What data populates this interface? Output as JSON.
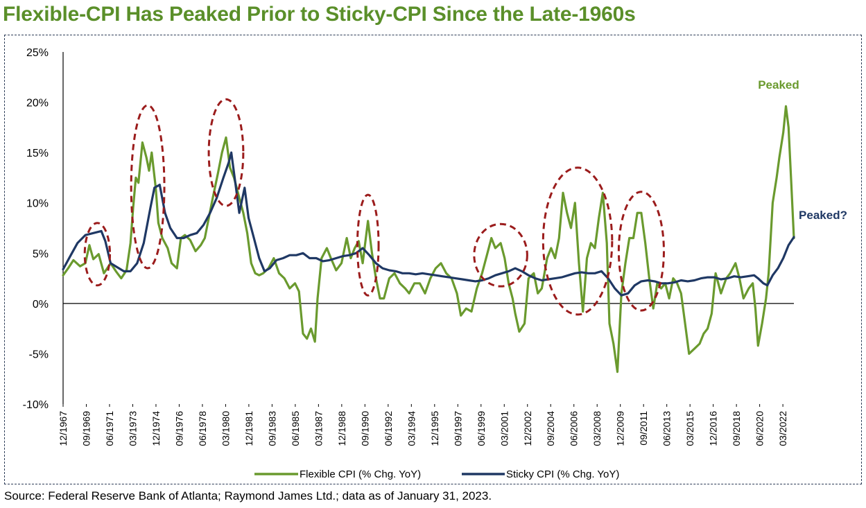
{
  "title": "Flexible-CPI Has Peaked Prior to Sticky-CPI Since the Late-1960s",
  "source": "Source: Federal Reserve Bank of Atlanta; Raymond James Ltd.; data as of January 31, 2023.",
  "colors": {
    "title": "#5a8f29",
    "flexible": "#6a9a2e",
    "sticky": "#1f3864",
    "circles": "#9b1c1c",
    "frame": "#2a3a55"
  },
  "chart_data": {
    "type": "line",
    "title": "Flexible-CPI Has Peaked Prior to Sticky-CPI Since the Late-1960s",
    "xlabel": "",
    "ylabel": "",
    "ylim": [
      -10,
      25
    ],
    "xlim": [
      1967.92,
      2023.0
    ],
    "grid": false,
    "legend_position": "bottom",
    "y_ticks": [
      "25%",
      "20%",
      "15%",
      "10%",
      "5%",
      "0%",
      "-5%",
      "-10%"
    ],
    "y_tick_values": [
      25,
      20,
      15,
      10,
      5,
      0,
      -5,
      -10
    ],
    "x_ticks": [
      "12/1967",
      "09/1969",
      "06/1971",
      "03/1973",
      "12/1974",
      "09/1976",
      "06/1978",
      "03/1980",
      "12/1981",
      "09/1983",
      "06/1985",
      "03/1987",
      "12/1988",
      "09/1990",
      "06/1992",
      "03/1994",
      "12/1995",
      "09/1997",
      "06/1999",
      "03/2001",
      "12/2002",
      "09/2004",
      "06/2006",
      "03/2008",
      "12/2009",
      "09/2011",
      "06/2013",
      "03/2015",
      "12/2016",
      "09/2018",
      "06/2020",
      "03/2022"
    ],
    "x_tick_values": [
      1967.92,
      1969.67,
      1971.42,
      1973.17,
      1974.92,
      1976.67,
      1978.42,
      1980.17,
      1981.92,
      1983.67,
      1985.42,
      1987.17,
      1988.92,
      1990.67,
      1992.42,
      1994.17,
      1995.92,
      1997.67,
      1999.42,
      2001.17,
      2002.92,
      2004.67,
      2006.42,
      2008.17,
      2009.92,
      2011.67,
      2013.42,
      2015.17,
      2016.92,
      2018.67,
      2020.42,
      2022.17
    ],
    "series": [
      {
        "name": "Flexible CPI (% Chg. YoY)",
        "points": [
          [
            1967.92,
            2.8
          ],
          [
            1968.3,
            3.5
          ],
          [
            1968.7,
            4.3
          ],
          [
            1969.2,
            3.7
          ],
          [
            1969.6,
            4.0
          ],
          [
            1969.9,
            5.8
          ],
          [
            1970.2,
            4.4
          ],
          [
            1970.6,
            4.9
          ],
          [
            1971.0,
            3.0
          ],
          [
            1971.5,
            4.0
          ],
          [
            1971.9,
            3.2
          ],
          [
            1972.3,
            2.5
          ],
          [
            1972.7,
            3.3
          ],
          [
            1973.0,
            6.0
          ],
          [
            1973.2,
            9.5
          ],
          [
            1973.4,
            12.5
          ],
          [
            1973.6,
            12.0
          ],
          [
            1973.9,
            16.0
          ],
          [
            1974.2,
            14.5
          ],
          [
            1974.4,
            13.2
          ],
          [
            1974.6,
            15.0
          ],
          [
            1974.9,
            11.5
          ],
          [
            1975.1,
            8.0
          ],
          [
            1975.4,
            6.5
          ],
          [
            1975.8,
            5.5
          ],
          [
            1976.1,
            4.0
          ],
          [
            1976.5,
            3.5
          ],
          [
            1976.8,
            6.5
          ],
          [
            1977.1,
            6.8
          ],
          [
            1977.5,
            6.3
          ],
          [
            1977.9,
            5.2
          ],
          [
            1978.3,
            5.8
          ],
          [
            1978.6,
            6.5
          ],
          [
            1978.9,
            8.5
          ],
          [
            1979.2,
            10.5
          ],
          [
            1979.6,
            13.0
          ],
          [
            1979.9,
            15.0
          ],
          [
            1980.2,
            16.5
          ],
          [
            1980.5,
            13.5
          ],
          [
            1980.8,
            12.5
          ],
          [
            1981.1,
            11.0
          ],
          [
            1981.5,
            9.0
          ],
          [
            1981.8,
            7.0
          ],
          [
            1982.1,
            4.0
          ],
          [
            1982.4,
            3.0
          ],
          [
            1982.7,
            2.8
          ],
          [
            1983.0,
            3.0
          ],
          [
            1983.4,
            3.5
          ],
          [
            1983.8,
            4.5
          ],
          [
            1984.2,
            3.0
          ],
          [
            1984.6,
            2.5
          ],
          [
            1985.0,
            1.5
          ],
          [
            1985.4,
            2.0
          ],
          [
            1985.7,
            1.2
          ],
          [
            1986.0,
            -3.0
          ],
          [
            1986.3,
            -3.5
          ],
          [
            1986.6,
            -2.5
          ],
          [
            1986.9,
            -3.8
          ],
          [
            1987.1,
            0.5
          ],
          [
            1987.4,
            4.5
          ],
          [
            1987.8,
            5.5
          ],
          [
            1988.1,
            4.5
          ],
          [
            1988.5,
            3.3
          ],
          [
            1988.9,
            4.0
          ],
          [
            1989.3,
            6.5
          ],
          [
            1989.6,
            4.5
          ],
          [
            1989.9,
            5.5
          ],
          [
            1990.2,
            6.2
          ],
          [
            1990.5,
            4.0
          ],
          [
            1990.9,
            8.2
          ],
          [
            1991.2,
            5.0
          ],
          [
            1991.5,
            2.5
          ],
          [
            1991.8,
            0.5
          ],
          [
            1992.1,
            0.5
          ],
          [
            1992.5,
            2.5
          ],
          [
            1992.9,
            3.0
          ],
          [
            1993.3,
            2.0
          ],
          [
            1993.7,
            1.5
          ],
          [
            1994.0,
            1.0
          ],
          [
            1994.4,
            2.0
          ],
          [
            1994.8,
            2.0
          ],
          [
            1995.2,
            1.0
          ],
          [
            1995.6,
            2.5
          ],
          [
            1996.0,
            3.5
          ],
          [
            1996.4,
            4.0
          ],
          [
            1996.8,
            3.0
          ],
          [
            1997.2,
            2.5
          ],
          [
            1997.6,
            1.0
          ],
          [
            1997.9,
            -1.2
          ],
          [
            1998.3,
            -0.5
          ],
          [
            1998.7,
            -0.8
          ],
          [
            1999.1,
            1.5
          ],
          [
            1999.5,
            3.0
          ],
          [
            1999.9,
            5.0
          ],
          [
            2000.2,
            6.5
          ],
          [
            2000.5,
            5.5
          ],
          [
            2000.9,
            6.0
          ],
          [
            2001.2,
            4.5
          ],
          [
            2001.5,
            2.0
          ],
          [
            2001.8,
            0.5
          ],
          [
            2002.0,
            -1.0
          ],
          [
            2002.3,
            -2.8
          ],
          [
            2002.7,
            -2.0
          ],
          [
            2003.0,
            2.5
          ],
          [
            2003.4,
            3.0
          ],
          [
            2003.7,
            1.0
          ],
          [
            2004.0,
            1.5
          ],
          [
            2004.4,
            4.5
          ],
          [
            2004.7,
            5.5
          ],
          [
            2005.0,
            4.5
          ],
          [
            2005.3,
            6.5
          ],
          [
            2005.6,
            11.0
          ],
          [
            2005.9,
            9.0
          ],
          [
            2006.2,
            7.5
          ],
          [
            2006.5,
            10.0
          ],
          [
            2006.8,
            4.0
          ],
          [
            2007.1,
            -0.8
          ],
          [
            2007.4,
            4.5
          ],
          [
            2007.7,
            6.0
          ],
          [
            2008.0,
            5.5
          ],
          [
            2008.3,
            8.5
          ],
          [
            2008.6,
            11.0
          ],
          [
            2008.9,
            6.0
          ],
          [
            2009.1,
            -2.0
          ],
          [
            2009.4,
            -4.0
          ],
          [
            2009.7,
            -6.8
          ],
          [
            2010.0,
            1.0
          ],
          [
            2010.3,
            4.0
          ],
          [
            2010.6,
            6.5
          ],
          [
            2010.9,
            6.5
          ],
          [
            2011.2,
            9.0
          ],
          [
            2011.5,
            9.0
          ],
          [
            2011.8,
            6.0
          ],
          [
            2012.1,
            2.5
          ],
          [
            2012.4,
            -0.5
          ],
          [
            2012.7,
            2.0
          ],
          [
            2013.0,
            1.5
          ],
          [
            2013.3,
            2.0
          ],
          [
            2013.6,
            0.5
          ],
          [
            2013.9,
            2.5
          ],
          [
            2014.2,
            2.0
          ],
          [
            2014.5,
            1.0
          ],
          [
            2014.8,
            -2.0
          ],
          [
            2015.1,
            -5.0
          ],
          [
            2015.5,
            -4.5
          ],
          [
            2015.9,
            -4.0
          ],
          [
            2016.2,
            -3.0
          ],
          [
            2016.5,
            -2.5
          ],
          [
            2016.8,
            -1.0
          ],
          [
            2017.1,
            3.0
          ],
          [
            2017.5,
            1.0
          ],
          [
            2017.9,
            2.5
          ],
          [
            2018.2,
            3.0
          ],
          [
            2018.6,
            4.0
          ],
          [
            2018.9,
            2.5
          ],
          [
            2019.2,
            0.5
          ],
          [
            2019.6,
            1.5
          ],
          [
            2019.9,
            2.0
          ],
          [
            2020.1,
            -0.5
          ],
          [
            2020.3,
            -4.2
          ],
          [
            2020.6,
            -2.0
          ],
          [
            2020.9,
            0.5
          ],
          [
            2021.1,
            3.0
          ],
          [
            2021.4,
            10.0
          ],
          [
            2021.7,
            12.5
          ],
          [
            2021.9,
            14.5
          ],
          [
            2022.2,
            17.0
          ],
          [
            2022.4,
            19.6
          ],
          [
            2022.6,
            17.5
          ],
          [
            2022.8,
            12.0
          ],
          [
            2023.0,
            6.5
          ]
        ]
      },
      {
        "name": "Sticky CPI (% Chg. YoY)",
        "points": [
          [
            1967.92,
            3.4
          ],
          [
            1968.5,
            4.8
          ],
          [
            1969.0,
            6.0
          ],
          [
            1969.6,
            6.8
          ],
          [
            1970.2,
            7.0
          ],
          [
            1970.8,
            7.2
          ],
          [
            1971.1,
            6.2
          ],
          [
            1971.5,
            4.0
          ],
          [
            1972.0,
            3.6
          ],
          [
            1972.5,
            3.2
          ],
          [
            1973.0,
            3.2
          ],
          [
            1973.5,
            4.0
          ],
          [
            1974.0,
            6.0
          ],
          [
            1974.5,
            9.5
          ],
          [
            1974.8,
            11.5
          ],
          [
            1975.2,
            11.8
          ],
          [
            1975.6,
            9.0
          ],
          [
            1976.0,
            7.5
          ],
          [
            1976.5,
            6.5
          ],
          [
            1977.0,
            6.5
          ],
          [
            1977.5,
            6.8
          ],
          [
            1978.0,
            7.0
          ],
          [
            1978.5,
            7.8
          ],
          [
            1979.0,
            9.0
          ],
          [
            1979.5,
            10.5
          ],
          [
            1980.0,
            12.5
          ],
          [
            1980.4,
            14.0
          ],
          [
            1980.6,
            15.0
          ],
          [
            1980.9,
            12.0
          ],
          [
            1981.2,
            9.0
          ],
          [
            1981.6,
            11.5
          ],
          [
            1981.9,
            8.5
          ],
          [
            1982.3,
            6.5
          ],
          [
            1982.7,
            4.5
          ],
          [
            1983.1,
            3.2
          ],
          [
            1983.5,
            3.5
          ],
          [
            1984.0,
            4.3
          ],
          [
            1984.5,
            4.5
          ],
          [
            1985.0,
            4.8
          ],
          [
            1985.5,
            4.8
          ],
          [
            1986.0,
            5.0
          ],
          [
            1986.5,
            4.5
          ],
          [
            1987.0,
            4.5
          ],
          [
            1987.5,
            4.2
          ],
          [
            1988.0,
            4.3
          ],
          [
            1988.5,
            4.5
          ],
          [
            1989.0,
            4.7
          ],
          [
            1989.5,
            4.8
          ],
          [
            1990.0,
            5.0
          ],
          [
            1990.5,
            5.5
          ],
          [
            1991.0,
            4.8
          ],
          [
            1991.5,
            4.0
          ],
          [
            1992.0,
            3.5
          ],
          [
            1992.5,
            3.3
          ],
          [
            1993.0,
            3.2
          ],
          [
            1993.5,
            3.0
          ],
          [
            1994.0,
            3.0
          ],
          [
            1994.5,
            2.9
          ],
          [
            1995.0,
            3.0
          ],
          [
            1995.5,
            2.9
          ],
          [
            1996.0,
            2.8
          ],
          [
            1996.5,
            2.7
          ],
          [
            1997.0,
            2.6
          ],
          [
            1997.5,
            2.5
          ],
          [
            1998.0,
            2.4
          ],
          [
            1998.5,
            2.3
          ],
          [
            1999.0,
            2.2
          ],
          [
            1999.5,
            2.3
          ],
          [
            2000.0,
            2.5
          ],
          [
            2000.5,
            2.8
          ],
          [
            2001.0,
            3.0
          ],
          [
            2001.5,
            3.2
          ],
          [
            2002.0,
            3.5
          ],
          [
            2002.5,
            3.2
          ],
          [
            2003.0,
            2.8
          ],
          [
            2003.5,
            2.5
          ],
          [
            2004.0,
            2.3
          ],
          [
            2004.5,
            2.4
          ],
          [
            2005.0,
            2.5
          ],
          [
            2005.5,
            2.6
          ],
          [
            2006.0,
            2.8
          ],
          [
            2006.5,
            3.0
          ],
          [
            2007.0,
            3.1
          ],
          [
            2007.5,
            3.0
          ],
          [
            2008.0,
            3.0
          ],
          [
            2008.5,
            3.2
          ],
          [
            2009.0,
            2.5
          ],
          [
            2009.5,
            1.5
          ],
          [
            2010.0,
            0.8
          ],
          [
            2010.5,
            1.0
          ],
          [
            2011.0,
            1.8
          ],
          [
            2011.5,
            2.2
          ],
          [
            2012.0,
            2.3
          ],
          [
            2012.5,
            2.2
          ],
          [
            2013.0,
            2.0
          ],
          [
            2013.5,
            2.0
          ],
          [
            2014.0,
            2.1
          ],
          [
            2014.5,
            2.3
          ],
          [
            2015.0,
            2.2
          ],
          [
            2015.5,
            2.3
          ],
          [
            2016.0,
            2.5
          ],
          [
            2016.5,
            2.6
          ],
          [
            2017.0,
            2.6
          ],
          [
            2017.5,
            2.4
          ],
          [
            2018.0,
            2.5
          ],
          [
            2018.5,
            2.7
          ],
          [
            2019.0,
            2.6
          ],
          [
            2019.5,
            2.7
          ],
          [
            2020.0,
            2.8
          ],
          [
            2020.3,
            2.5
          ],
          [
            2020.7,
            2.0
          ],
          [
            2021.0,
            1.8
          ],
          [
            2021.4,
            2.8
          ],
          [
            2021.8,
            3.5
          ],
          [
            2022.2,
            4.5
          ],
          [
            2022.6,
            5.8
          ],
          [
            2023.0,
            6.6
          ]
        ]
      }
    ],
    "annotations": [
      {
        "text": "Peaked",
        "series": "Flexible CPI (% Chg. YoY)"
      },
      {
        "text": "Peaked?",
        "series": "Sticky CPI (% Chg. YoY)"
      }
    ]
  }
}
